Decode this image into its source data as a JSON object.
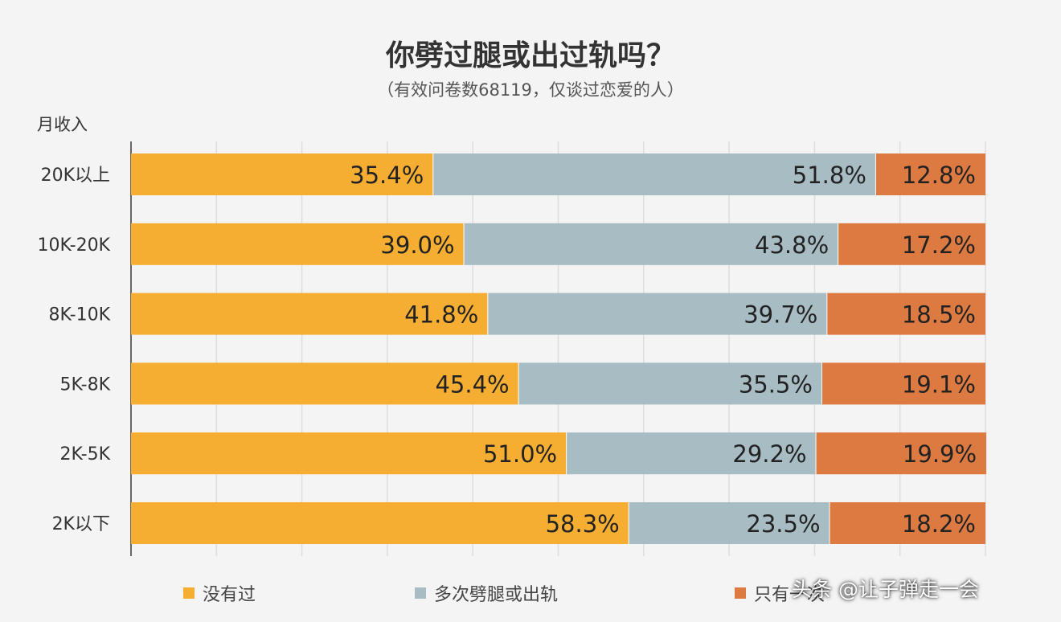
{
  "title": "你劈过腿或出过轨吗？",
  "subtitle": "（有效问卷数68119，仅谈过恋爱的人）",
  "watermark": "头条 @让子弹走一会",
  "colors": {
    "never": "#f5ae32",
    "multiple": "#a8bcc3",
    "once": "#dc7a42",
    "label_text": "#222222",
    "grid": "#dddddd"
  },
  "chart_data": {
    "type": "bar",
    "orientation": "horizontal",
    "stacked": true,
    "ylabel": "月收入",
    "categories": [
      "20K以上",
      "10K-20K",
      "8K-10K",
      "5K-8K",
      "2K-5K",
      "2K以下"
    ],
    "series": [
      {
        "name": "没有过",
        "values": [
          35.4,
          39.0,
          41.8,
          45.4,
          51.0,
          58.3
        ],
        "labels": [
          "35.4%",
          "39.0%",
          "41.8%",
          "45.4%",
          "51.0%",
          "58.3%"
        ],
        "color": "#f5ae32"
      },
      {
        "name": "多次劈腿或出轨",
        "values": [
          51.8,
          43.8,
          39.7,
          35.5,
          29.2,
          23.5
        ],
        "labels": [
          "51.8%",
          "43.8%",
          "39.7%",
          "35.5%",
          "29.2%",
          "23.5%"
        ],
        "color": "#a8bcc3"
      },
      {
        "name": "只有一次",
        "values": [
          12.8,
          17.2,
          18.5,
          19.1,
          19.9,
          18.2
        ],
        "labels": [
          "12.8%",
          "17.2%",
          "18.5%",
          "19.1%",
          "19.9%",
          "18.2%"
        ],
        "color": "#dc7a42"
      }
    ],
    "xlim": [
      0,
      100
    ],
    "grid": true,
    "legend": "bottom"
  }
}
